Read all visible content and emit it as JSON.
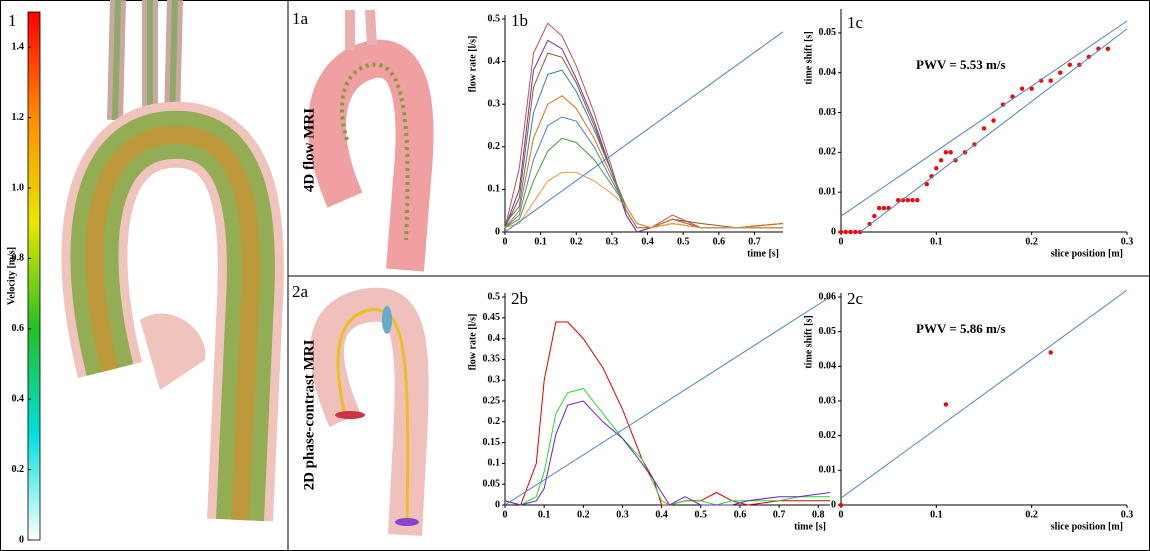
{
  "figure_label": "1",
  "images": [
    {
      "label": "1a",
      "caption": "4D flow MRI"
    },
    {
      "label": "2a",
      "caption": "2D phase-contrast MRI"
    }
  ],
  "chart_data": [
    {
      "type": "colorbar",
      "y_label": "Velocity [m/s]",
      "ylim": [
        0,
        1.5
      ],
      "yticks": [
        0,
        0.2,
        0.4,
        0.6,
        0.8,
        {
          "value": 1,
          "label": "1.0"
        },
        1.2,
        1.4
      ],
      "colorscale": [
        "#ffffff",
        "#00e0e0",
        "#22c022",
        "#e8e800",
        "#ff8c00",
        "#ff0000"
      ]
    },
    {
      "type": "line",
      "label": "1b",
      "x_label": "time [s]",
      "y_label": "flow rate [l/s]",
      "xlim": [
        0,
        0.78
      ],
      "xticks": [
        0,
        0.1,
        0.2,
        0.3,
        0.4,
        0.5,
        0.6,
        0.7
      ],
      "ylim": [
        0,
        0.5
      ],
      "yticks": [
        0,
        0.1,
        0.2,
        0.3,
        0.4,
        0.5
      ],
      "series": [
        {
          "color": "#c0504d",
          "x": [
            0,
            0.04,
            0.08,
            0.12,
            0.16,
            0.2,
            0.25,
            0.3,
            0.34,
            0.37,
            0.41,
            0.47,
            0.55,
            0.65,
            0.78
          ],
          "values": [
            0.01,
            0.15,
            0.42,
            0.49,
            0.46,
            0.39,
            0.28,
            0.15,
            0.04,
            0,
            0.01,
            0.04,
            0.01,
            0.01,
            0.02
          ]
        },
        {
          "color": "#7030a0",
          "x": [
            0,
            0.04,
            0.08,
            0.12,
            0.16,
            0.2,
            0.25,
            0.3,
            0.34,
            0.37,
            0.41,
            0.47,
            0.55,
            0.65,
            0.78
          ],
          "values": [
            0.01,
            0.1,
            0.38,
            0.45,
            0.43,
            0.36,
            0.26,
            0.14,
            0.04,
            0,
            0.01,
            0.03,
            0.01,
            0.01,
            0.01
          ]
        },
        {
          "color": "#8b5a2b",
          "x": [
            0,
            0.04,
            0.08,
            0.12,
            0.16,
            0.2,
            0.25,
            0.3,
            0.34,
            0.37,
            0.41,
            0.47,
            0.55,
            0.65,
            0.78
          ],
          "values": [
            0.01,
            0.08,
            0.34,
            0.42,
            0.41,
            0.35,
            0.25,
            0.14,
            0.05,
            0.01,
            0.01,
            0.03,
            0.02,
            0.01,
            0.02
          ]
        },
        {
          "color": "#31859c",
          "x": [
            0,
            0.04,
            0.08,
            0.12,
            0.16,
            0.2,
            0.25,
            0.3,
            0.34,
            0.37,
            0.41,
            0.47,
            0.55,
            0.65,
            0.78
          ],
          "values": [
            0.02,
            0.06,
            0.28,
            0.37,
            0.38,
            0.33,
            0.24,
            0.14,
            0.06,
            0.02,
            0.01,
            0.03,
            0.01,
            0.01,
            0.01
          ]
        },
        {
          "color": "#e46c0a",
          "x": [
            0,
            0.04,
            0.08,
            0.12,
            0.16,
            0.2,
            0.25,
            0.3,
            0.34,
            0.37,
            0.41,
            0.47,
            0.55,
            0.65,
            0.78
          ],
          "values": [
            0.01,
            0.05,
            0.22,
            0.3,
            0.32,
            0.29,
            0.22,
            0.13,
            0.06,
            0.02,
            0.01,
            0.03,
            0.01,
            0.01,
            0.02
          ]
        },
        {
          "color": "#4f81bd",
          "x": [
            0,
            0.04,
            0.08,
            0.12,
            0.16,
            0.2,
            0.25,
            0.3,
            0.34,
            0.37,
            0.41,
            0.47,
            0.55,
            0.65,
            0.78
          ],
          "values": [
            0.01,
            0.04,
            0.17,
            0.25,
            0.27,
            0.26,
            0.2,
            0.12,
            0.06,
            0.02,
            0.01,
            0.02,
            0.01,
            0.01,
            0.01
          ]
        },
        {
          "color": "#4a9a3a",
          "x": [
            0,
            0.04,
            0.08,
            0.12,
            0.16,
            0.2,
            0.25,
            0.3,
            0.34,
            0.37,
            0.41,
            0.47,
            0.55,
            0.65,
            0.78
          ],
          "values": [
            0.01,
            0.03,
            0.12,
            0.19,
            0.22,
            0.21,
            0.17,
            0.11,
            0.06,
            0.02,
            0.01,
            0.02,
            0.01,
            0.01,
            0.01
          ]
        },
        {
          "color": "#f79646",
          "x": [
            0,
            0.04,
            0.08,
            0.12,
            0.16,
            0.2,
            0.25,
            0.3,
            0.34,
            0.37,
            0.41,
            0.47,
            0.55,
            0.65,
            0.78
          ],
          "values": [
            0.01,
            0.02,
            0.07,
            0.12,
            0.14,
            0.14,
            0.12,
            0.09,
            0.06,
            0.02,
            0.01,
            0.02,
            0.01,
            0.01,
            0.01
          ]
        },
        {
          "color": "#4f81bd",
          "x": [
            0,
            0.78
          ],
          "values": [
            0,
            0.47
          ]
        }
      ]
    },
    {
      "type": "scatter",
      "label": "1c",
      "x_label": "slice position [m]",
      "y_label": "time shift [s]",
      "annotation": "PWV = 5.53 m/s",
      "xlim": [
        0,
        0.3
      ],
      "xticks": [
        0,
        0.1,
        0.2,
        0.3
      ],
      "ylim": [
        0,
        0.055
      ],
      "yticks": [
        0,
        0.01,
        0.02,
        0.03,
        0.04,
        0.05
      ],
      "series": [
        {
          "style": "markers",
          "color": "#ff0000",
          "x": [
            0,
            0.005,
            0.01,
            0.015,
            0.02,
            0.03,
            0.035,
            0.04,
            0.045,
            0.05,
            0.06,
            0.065,
            0.07,
            0.075,
            0.08,
            0.09,
            0.095,
            0.1,
            0.105,
            0.11,
            0.115,
            0.12,
            0.13,
            0.14,
            0.15,
            0.16,
            0.17,
            0.18,
            0.19,
            0.2,
            0.21,
            0.22,
            0.23,
            0.24,
            0.25,
            0.26,
            0.27,
            0.28
          ],
          "values": [
            0,
            0,
            0,
            0,
            0,
            0.002,
            0.004,
            0.006,
            0.006,
            0.006,
            0.008,
            0.008,
            0.008,
            0.008,
            0.008,
            0.012,
            0.014,
            0.016,
            0.018,
            0.02,
            0.02,
            0.018,
            0.02,
            0.022,
            0.026,
            0.028,
            0.032,
            0.034,
            0.036,
            0.036,
            0.038,
            0.038,
            0.04,
            0.042,
            0.042,
            0.044,
            0.046,
            0.046
          ]
        },
        {
          "style": "line",
          "color": "#4f81bd",
          "x": [
            0,
            0.3
          ],
          "values": [
            0.004,
            0.053
          ]
        },
        {
          "style": "line",
          "color": "#4f81bd",
          "x": [
            0.02,
            0.3
          ],
          "values": [
            0,
            0.051
          ]
        }
      ]
    },
    {
      "type": "line",
      "label": "2b",
      "x_label": "time [s]",
      "y_label": "flow rate  [l/s]",
      "xlim": [
        0,
        0.83
      ],
      "xticks": [
        0,
        0.1,
        0.2,
        0.3,
        0.4,
        0.5,
        0.6,
        0.7,
        0.8
      ],
      "ylim": [
        0,
        0.5
      ],
      "yticks": [
        0,
        0.05,
        0.1,
        0.15,
        0.2,
        0.25,
        0.3,
        0.35,
        0.4,
        0.45,
        0.5
      ],
      "series": [
        {
          "color": "#e00000",
          "x": [
            0,
            0.04,
            0.08,
            0.1,
            0.13,
            0.16,
            0.2,
            0.25,
            0.3,
            0.35,
            0.38,
            0.4,
            0.42,
            0.46,
            0.5,
            0.54,
            0.58,
            0.62,
            0.7,
            0.75,
            0.83
          ],
          "values": [
            0.01,
            0,
            0.1,
            0.3,
            0.44,
            0.44,
            0.4,
            0.33,
            0.23,
            0.11,
            0.06,
            0,
            0,
            0.01,
            0.01,
            0.03,
            0.01,
            0,
            0.01,
            0.01,
            0.01
          ]
        },
        {
          "color": "#22dd22",
          "x": [
            0,
            0.04,
            0.08,
            0.1,
            0.13,
            0.16,
            0.2,
            0.25,
            0.3,
            0.35,
            0.38,
            0.4,
            0.42,
            0.46,
            0.5,
            0.54,
            0.58,
            0.62,
            0.7,
            0.75,
            0.83
          ],
          "values": [
            0.01,
            0,
            0.02,
            0.08,
            0.22,
            0.27,
            0.28,
            0.22,
            0.16,
            0.11,
            0.05,
            0.01,
            0,
            0.01,
            0.01,
            0,
            0.01,
            0.01,
            0.01,
            0.02,
            0.02
          ]
        },
        {
          "color": "#6a22cc",
          "x": [
            0,
            0.04,
            0.08,
            0.1,
            0.13,
            0.16,
            0.2,
            0.25,
            0.3,
            0.35,
            0.38,
            0.4,
            0.42,
            0.46,
            0.5,
            0.54,
            0.58,
            0.62,
            0.7,
            0.75,
            0.83
          ],
          "values": [
            0.01,
            0,
            0.01,
            0.04,
            0.17,
            0.24,
            0.25,
            0.2,
            0.16,
            0.1,
            0.06,
            0.03,
            0,
            0.02,
            0,
            0,
            0,
            0.01,
            0.02,
            0.02,
            0.03
          ]
        },
        {
          "color": "#4f81bd",
          "x": [
            0,
            0.83
          ],
          "values": [
            0,
            0.5
          ]
        }
      ]
    },
    {
      "type": "scatter",
      "label": "2c",
      "x_label": "slice position [m]",
      "y_label": "time shift [s]",
      "annotation": "PWV = 5.86 m/s",
      "xlim": [
        0,
        0.3
      ],
      "xticks": [
        0,
        0.1,
        0.2,
        0.3
      ],
      "ylim": [
        0,
        0.06
      ],
      "yticks": [
        0,
        0.01,
        0.02,
        0.03,
        0.04,
        0.05,
        0.06
      ],
      "series": [
        {
          "style": "markers",
          "color": "#ff0000",
          "x": [
            0,
            0.11,
            0.22
          ],
          "values": [
            0,
            0.029,
            0.044
          ]
        },
        {
          "style": "line",
          "color": "#4f81bd",
          "x": [
            0,
            0.3
          ],
          "values": [
            0.002,
            0.062
          ]
        }
      ]
    }
  ]
}
